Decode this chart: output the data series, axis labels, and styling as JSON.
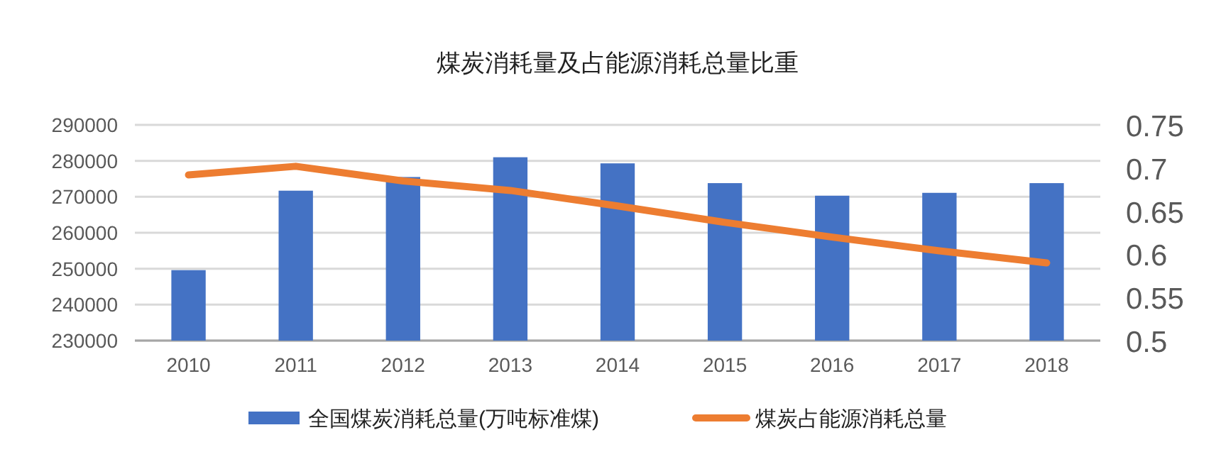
{
  "chart_data": {
    "type": "bar",
    "title": "煤炭消耗量及占能源消耗总量比重",
    "categories": [
      "2010",
      "2011",
      "2012",
      "2013",
      "2014",
      "2015",
      "2016",
      "2017",
      "2018"
    ],
    "series": [
      {
        "name": "全国煤炭消耗总量(万吨标准煤)",
        "color": "#4472c4",
        "values": [
          249600,
          271700,
          275500,
          281000,
          279300,
          273800,
          270300,
          271100,
          273800
        ]
      },
      {
        "name": "煤炭占能源消耗总量",
        "type": "line",
        "axis": "y2",
        "color": "#ed7d31",
        "values": [
          0.692,
          0.702,
          0.685,
          0.674,
          0.656,
          0.637,
          0.62,
          0.604,
          0.59
        ]
      }
    ],
    "ylim": [
      230000,
      290000
    ],
    "yticks": [
      230000,
      240000,
      250000,
      260000,
      270000,
      280000,
      290000
    ],
    "y2lim": [
      0.5,
      0.75
    ],
    "y2ticks": [
      {
        "value": 0.5,
        "label": "0.5"
      },
      {
        "value": 0.55,
        "label": "0.55"
      },
      {
        "value": 0.6,
        "label": "0.6"
      },
      {
        "value": 0.65,
        "label": "0.65"
      },
      {
        "value": 0.7,
        "label": "0.7"
      },
      {
        "value": 0.75,
        "label": "0.75"
      }
    ],
    "grid": "y",
    "legend": "bottom",
    "marker": "none"
  }
}
